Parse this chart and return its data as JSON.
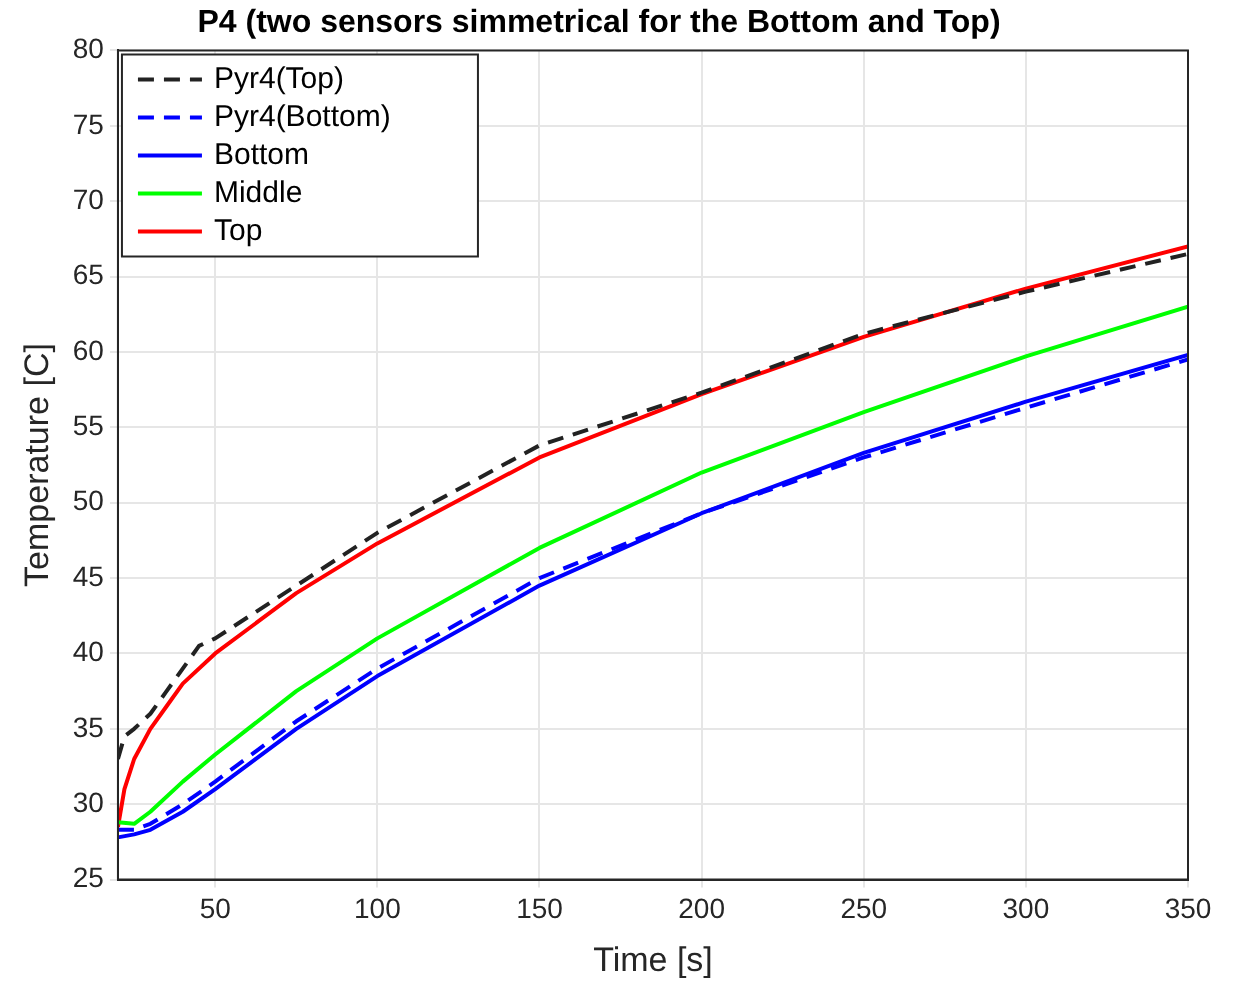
{
  "chart_data": {
    "type": "line",
    "title": "P4 (two sensors simmetrical for the Bottom and Top)",
    "xlabel": "Time [s]",
    "ylabel": "Temperature [C]",
    "xlim": [
      20,
      350
    ],
    "xticks": [
      50,
      100,
      150,
      200,
      250,
      300,
      350
    ],
    "ylim": [
      25,
      80
    ],
    "yticks": [
      25,
      30,
      35,
      40,
      45,
      50,
      55,
      60,
      65,
      70,
      75,
      80
    ],
    "grid": true,
    "legend": "top left",
    "marker": "none",
    "series": [
      {
        "name": "Pyr4(Top)",
        "color": "#222222",
        "line_style": "dashed",
        "x": [
          20,
          22,
          25,
          30,
          35,
          45,
          50,
          75,
          100,
          150,
          200,
          250,
          300,
          350
        ],
        "values": [
          33,
          34.5,
          35,
          36,
          37.5,
          40.5,
          41,
          44.5,
          48,
          53.8,
          57.3,
          61.2,
          64,
          66.5
        ]
      },
      {
        "name": "Pyr4(Bottom)",
        "color": "#0000ff",
        "line_style": "dashed",
        "x": [
          20,
          25,
          30,
          40,
          50,
          75,
          100,
          150,
          200,
          250,
          300,
          350
        ],
        "values": [
          28.3,
          28.3,
          28.7,
          30,
          31.5,
          35.5,
          39,
          45,
          49.3,
          53,
          56.3,
          59.5
        ]
      },
      {
        "name": "Bottom",
        "color": "#0000ff",
        "line_style": "solid",
        "x": [
          20,
          25,
          30,
          40,
          50,
          75,
          100,
          150,
          200,
          250,
          300,
          350
        ],
        "values": [
          27.8,
          28,
          28.3,
          29.5,
          31,
          35,
          38.5,
          44.5,
          49.3,
          53.3,
          56.7,
          59.8
        ]
      },
      {
        "name": "Middle",
        "color": "#00ff00",
        "line_style": "solid",
        "x": [
          20,
          25,
          30,
          40,
          50,
          75,
          100,
          150,
          200,
          250,
          300,
          350
        ],
        "values": [
          28.8,
          28.7,
          29.5,
          31.5,
          33.3,
          37.5,
          41,
          47,
          52,
          56,
          59.7,
          63
        ]
      },
      {
        "name": "Top",
        "color": "#ff0000",
        "line_style": "solid",
        "x": [
          20,
          22,
          25,
          30,
          35,
          40,
          50,
          75,
          100,
          150,
          200,
          250,
          300,
          350
        ],
        "values": [
          28.5,
          31,
          33,
          35,
          36.5,
          38,
          40,
          44,
          47.3,
          53,
          57.2,
          61,
          64.2,
          67
        ]
      }
    ]
  }
}
